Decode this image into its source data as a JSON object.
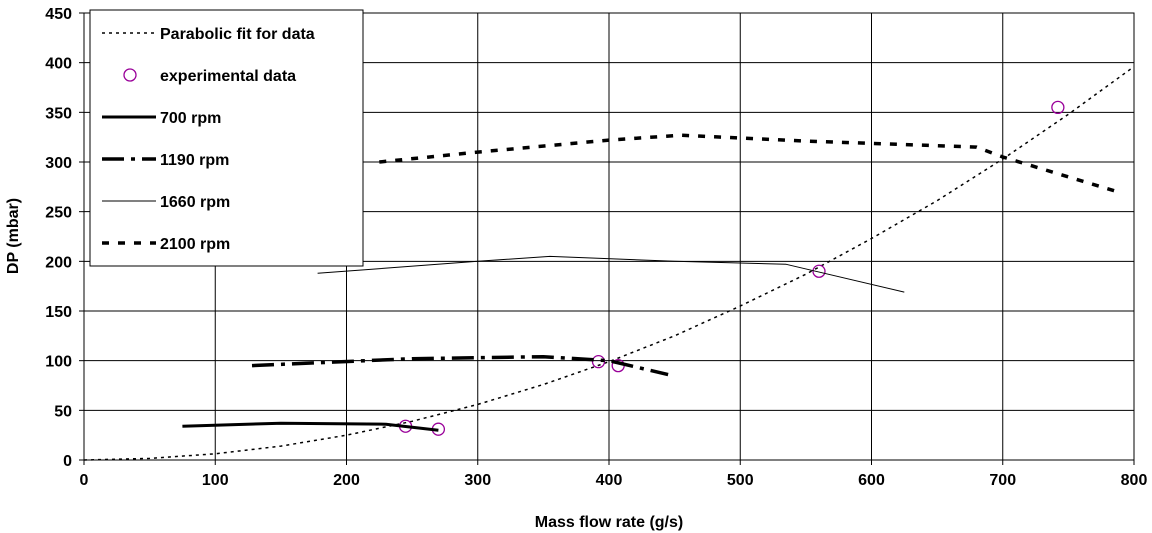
{
  "chart_data": {
    "type": "line",
    "title": "",
    "xlabel": "Mass flow rate (g/s)",
    "ylabel": "DP (mbar)",
    "xlim": [
      0,
      800
    ],
    "ylim": [
      0,
      450
    ],
    "x_ticks": [
      "0",
      "100",
      "200",
      "300",
      "400",
      "500",
      "600",
      "700",
      "800"
    ],
    "y_ticks": [
      "0",
      "50",
      "100",
      "150",
      "200",
      "250",
      "300",
      "350",
      "400",
      "450"
    ],
    "grid": true,
    "legend_position": "top-left",
    "series": [
      {
        "name": "Parabolic fit for data",
        "style": "dotted",
        "color": "#000000",
        "x": [
          0,
          50,
          100,
          150,
          200,
          250,
          300,
          350,
          400,
          450,
          500,
          550,
          600,
          650,
          700,
          750,
          800
        ],
        "y": [
          0,
          1.6,
          6.2,
          14,
          25,
          39,
          56,
          76,
          99,
          125,
          155,
          187,
          223,
          261,
          303,
          348,
          396
        ]
      },
      {
        "name": "experimental data",
        "style": "markers",
        "color": "#990099",
        "x": [
          245,
          270,
          392,
          407,
          560,
          742
        ],
        "y": [
          34,
          31,
          99,
          95,
          190,
          355
        ]
      },
      {
        "name": "700 rpm",
        "style": "solid-thick",
        "color": "#000000",
        "x": [
          75,
          150,
          230,
          270
        ],
        "y": [
          34,
          37,
          36,
          30
        ]
      },
      {
        "name": "1190 rpm",
        "style": "dash-dot-thick",
        "color": "#000000",
        "x": [
          128,
          250,
          350,
          400,
          445
        ],
        "y": [
          95,
          102,
          104,
          100,
          86
        ]
      },
      {
        "name": "1660 rpm",
        "style": "solid-thin",
        "color": "#000000",
        "x": [
          178,
          300,
          355,
          450,
          535,
          625
        ],
        "y": [
          188,
          200,
          205,
          200,
          197,
          169
        ]
      },
      {
        "name": "2100 rpm",
        "style": "dashed-thick",
        "color": "#000000",
        "x": [
          225,
          300,
          400,
          455,
          550,
          680,
          700,
          790
        ],
        "y": [
          300,
          310,
          322,
          327,
          321,
          315,
          305,
          269
        ]
      }
    ]
  }
}
